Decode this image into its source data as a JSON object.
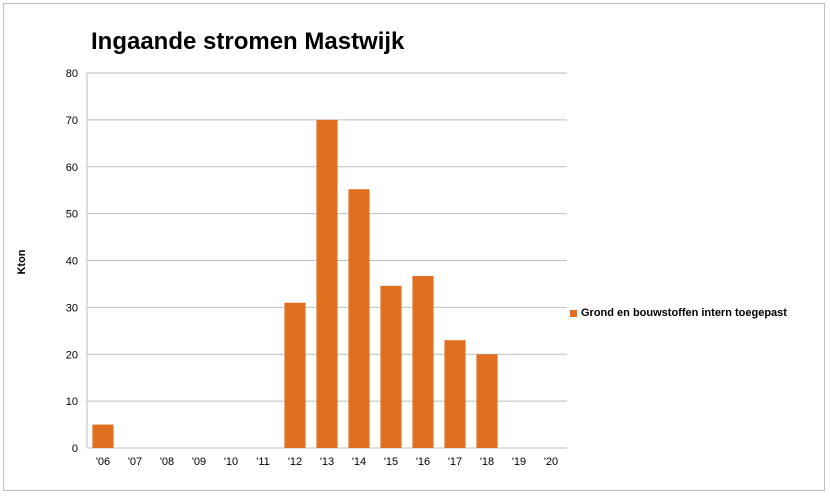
{
  "chart_data": {
    "type": "bar",
    "title": "Ingaande stromen Mastwijk",
    "xlabel": "",
    "ylabel": "Kton",
    "ylim": [
      0,
      80
    ],
    "yticks": [
      0,
      10,
      20,
      30,
      40,
      50,
      60,
      70,
      80
    ],
    "grid": true,
    "legend_position": "right",
    "categories": [
      "'06",
      "'07",
      "'08",
      "'09",
      "'10",
      "'11",
      "'12",
      "'13",
      "'14",
      "'15",
      "'16",
      "'17",
      "'18",
      "'19",
      "'20"
    ],
    "series": [
      {
        "name": "Grond en bouwstoffen intern toegepast",
        "color": "#e07020",
        "values": [
          5,
          0,
          0,
          0,
          0,
          0,
          31,
          70,
          55.2,
          34.6,
          36.7,
          23,
          20,
          0,
          0
        ]
      }
    ]
  }
}
